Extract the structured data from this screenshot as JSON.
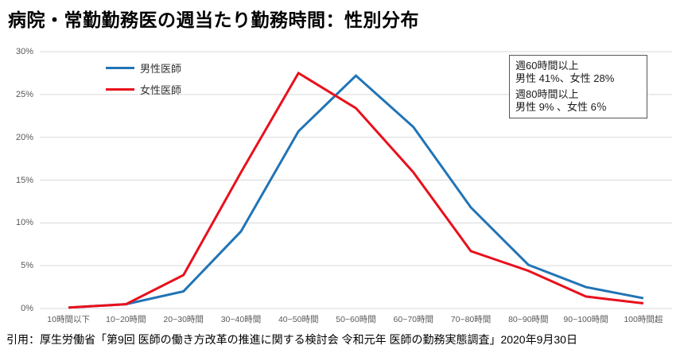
{
  "title": "病院・常勤勤務医の週当たり勤務時間：性別分布",
  "footer": "引用：厚生労働省「第9回 医師の働き方改革の推進に関する検討会 令和元年 医師の勤務実態調査」2020年9月30日",
  "annotation": {
    "lines": [
      "週60時間以上",
      "男性  41%、女性  28%",
      "週80時間以上",
      "男性  9% 、女性  6％"
    ]
  },
  "chart_data": {
    "type": "line",
    "title": "病院・常勤勤務医の週当たり勤務時間：性別分布",
    "categories": [
      "10時間以下",
      "10~20時間",
      "20~30時間",
      "30~40時間",
      "40~50時間",
      "50~60時間",
      "60~70時間",
      "70~80時間",
      "80~90時間",
      "90~100時間",
      "100時間超"
    ],
    "series": [
      {
        "key": "male",
        "name": "男性医師",
        "color": "#2274b5",
        "values": [
          0.1,
          0.5,
          2.0,
          9.0,
          20.7,
          27.2,
          21.2,
          11.8,
          5.1,
          2.5,
          1.2
        ]
      },
      {
        "key": "female",
        "name": "女性医師",
        "color": "#e8101c",
        "values": [
          0.1,
          0.5,
          3.9,
          15.9,
          27.5,
          23.4,
          15.9,
          6.7,
          4.4,
          1.4,
          0.6
        ]
      }
    ],
    "xlabel": "",
    "ylabel": "",
    "ylim": [
      0,
      30
    ],
    "y_ticks": [
      {
        "value": 0,
        "label": "0%"
      },
      {
        "value": 5,
        "label": "5%"
      },
      {
        "value": 10,
        "label": "10%"
      },
      {
        "value": 15,
        "label": "15%"
      },
      {
        "value": 20,
        "label": "20%"
      },
      {
        "value": 25,
        "label": "25%"
      },
      {
        "value": 30,
        "label": "30%"
      }
    ],
    "grid": true,
    "gridline_color": "#d9d9d9",
    "legend_position": "top-left-inside"
  }
}
